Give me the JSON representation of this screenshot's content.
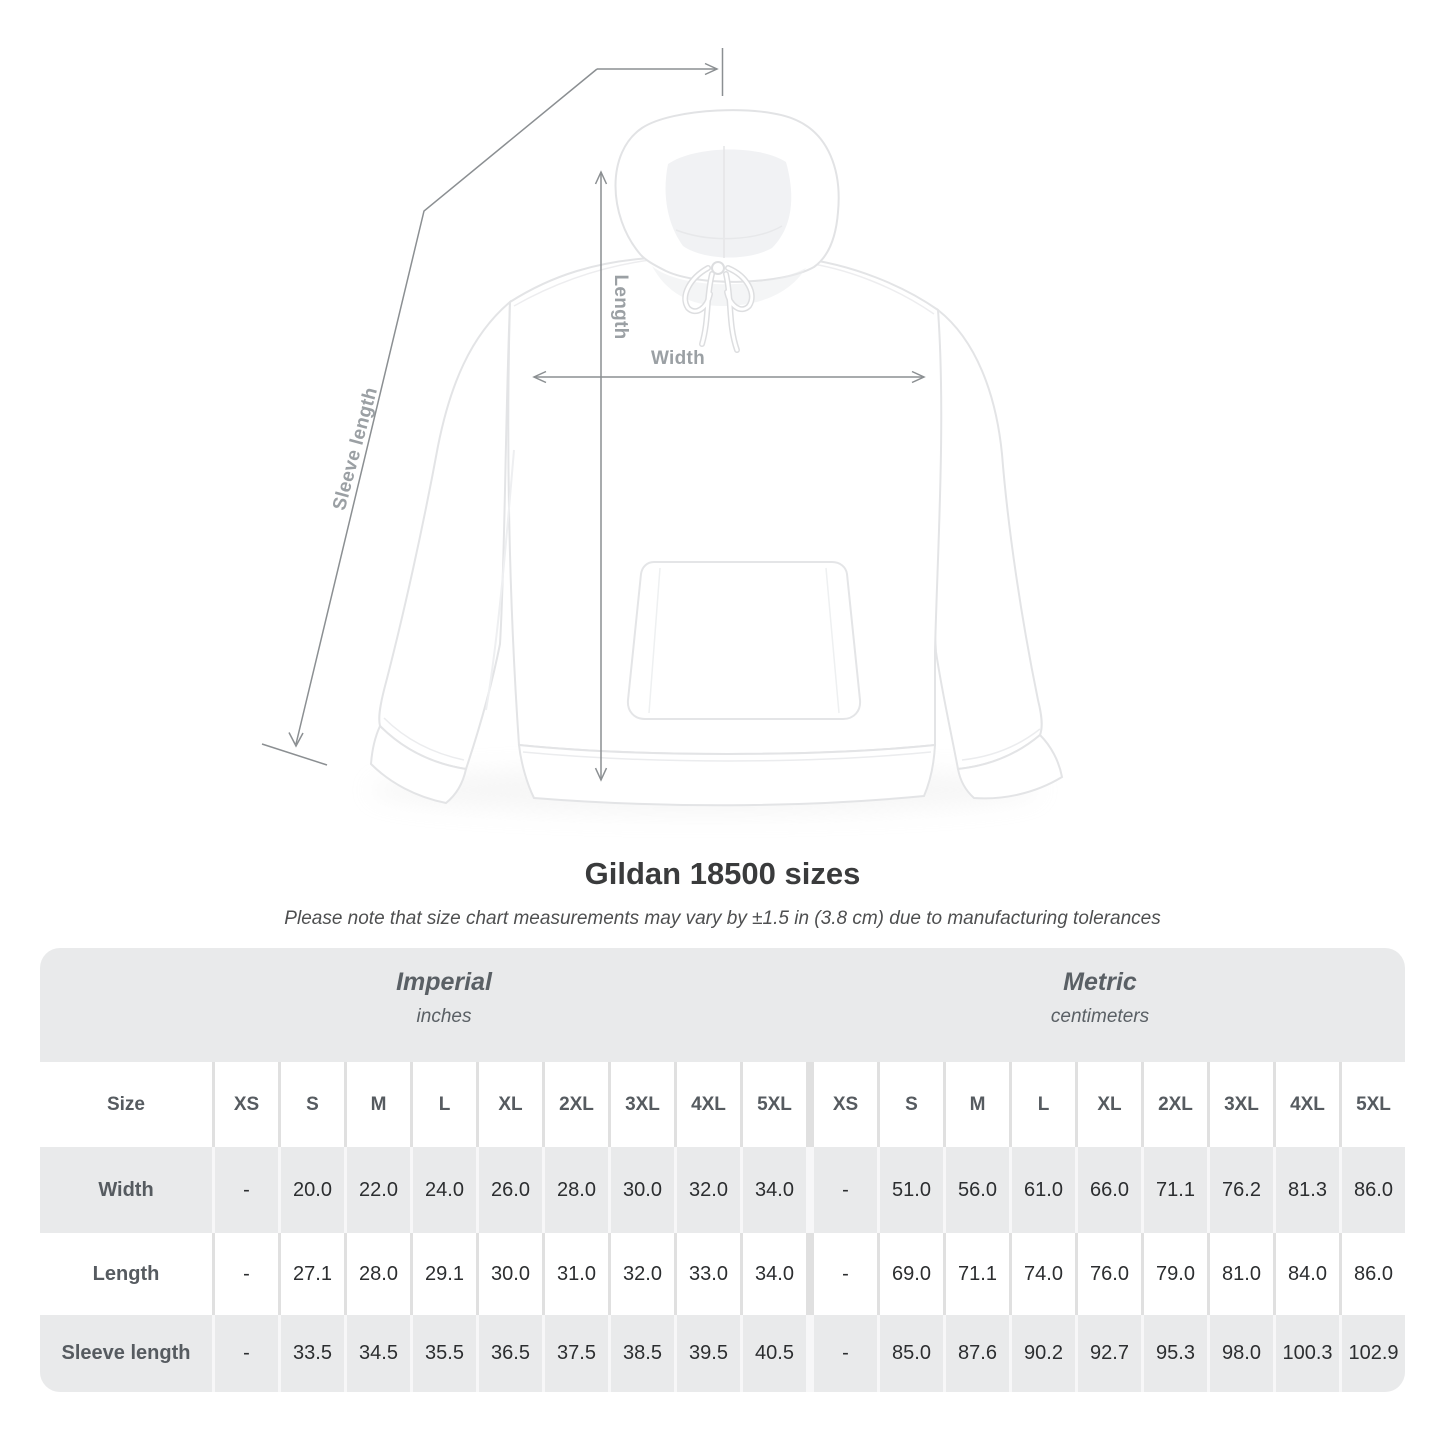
{
  "measure_diagram": {
    "labels": {
      "length": "Length",
      "width": "Width",
      "sleeve_length": "Sleeve length"
    },
    "line_color": "#8b8f92",
    "label_color": "#9ba0a4"
  },
  "heading": {
    "title": "Gildan 18500 sizes",
    "note": "Please note that size chart measurements may vary by ±1.5 in (3.8 cm) due to manufacturing tolerances"
  },
  "size_chart": {
    "unit_groups": [
      {
        "label": "Imperial",
        "sublabel": "inches"
      },
      {
        "label": "Metric",
        "sublabel": "centimeters"
      }
    ],
    "size_column_header": "Size",
    "size_headers": [
      "XS",
      "S",
      "M",
      "L",
      "XL",
      "2XL",
      "3XL",
      "4XL",
      "5XL"
    ],
    "rows": [
      {
        "label": "Width",
        "imperial": [
          "-",
          "20.0",
          "22.0",
          "24.0",
          "26.0",
          "28.0",
          "30.0",
          "32.0",
          "34.0"
        ],
        "metric": [
          "-",
          "51.0",
          "56.0",
          "61.0",
          "66.0",
          "71.1",
          "76.2",
          "81.3",
          "86.0"
        ]
      },
      {
        "label": "Length",
        "imperial": [
          "-",
          "27.1",
          "28.0",
          "29.1",
          "30.0",
          "31.0",
          "32.0",
          "33.0",
          "34.0"
        ],
        "metric": [
          "-",
          "69.0",
          "71.1",
          "74.0",
          "76.0",
          "79.0",
          "81.0",
          "84.0",
          "86.0"
        ]
      },
      {
        "label": "Sleeve length",
        "imperial": [
          "-",
          "33.5",
          "34.5",
          "35.5",
          "36.5",
          "37.5",
          "38.5",
          "39.5",
          "40.5"
        ],
        "metric": [
          "-",
          "85.0",
          "87.6",
          "90.2",
          "92.7",
          "95.3",
          "98.0",
          "100.3",
          "102.9"
        ]
      }
    ],
    "colors": {
      "band": "#e9eaeb",
      "row_gray": "#e9eaeb",
      "row_white": "#ffffff",
      "gridline": "#e0e0e0",
      "header_text": "#565b60",
      "value_text": "#2c2e30"
    }
  },
  "chart_data": {
    "type": "table",
    "title": "Gildan 18500 sizes",
    "note": "Please note that size chart measurements may vary by ±1.5 in (3.8 cm) due to manufacturing tolerances",
    "column_groups": [
      "Imperial (inches)",
      "Metric (centimeters)"
    ],
    "columns": [
      "Size",
      "XS",
      "S",
      "M",
      "L",
      "XL",
      "2XL",
      "3XL",
      "4XL",
      "5XL",
      "XS",
      "S",
      "M",
      "L",
      "XL",
      "2XL",
      "3XL",
      "4XL",
      "5XL"
    ],
    "rows": [
      [
        "Width",
        "-",
        "20.0",
        "22.0",
        "24.0",
        "26.0",
        "28.0",
        "30.0",
        "32.0",
        "34.0",
        "-",
        "51.0",
        "56.0",
        "61.0",
        "66.0",
        "71.1",
        "76.2",
        "81.3",
        "86.0"
      ],
      [
        "Length",
        "-",
        "27.1",
        "28.0",
        "29.1",
        "30.0",
        "31.0",
        "32.0",
        "33.0",
        "34.0",
        "-",
        "69.0",
        "71.1",
        "74.0",
        "76.0",
        "79.0",
        "81.0",
        "84.0",
        "86.0"
      ],
      [
        "Sleeve length",
        "-",
        "33.5",
        "34.5",
        "35.5",
        "36.5",
        "37.5",
        "38.5",
        "39.5",
        "40.5",
        "-",
        "85.0",
        "87.6",
        "90.2",
        "92.7",
        "95.3",
        "98.0",
        "100.3",
        "102.9"
      ]
    ]
  }
}
